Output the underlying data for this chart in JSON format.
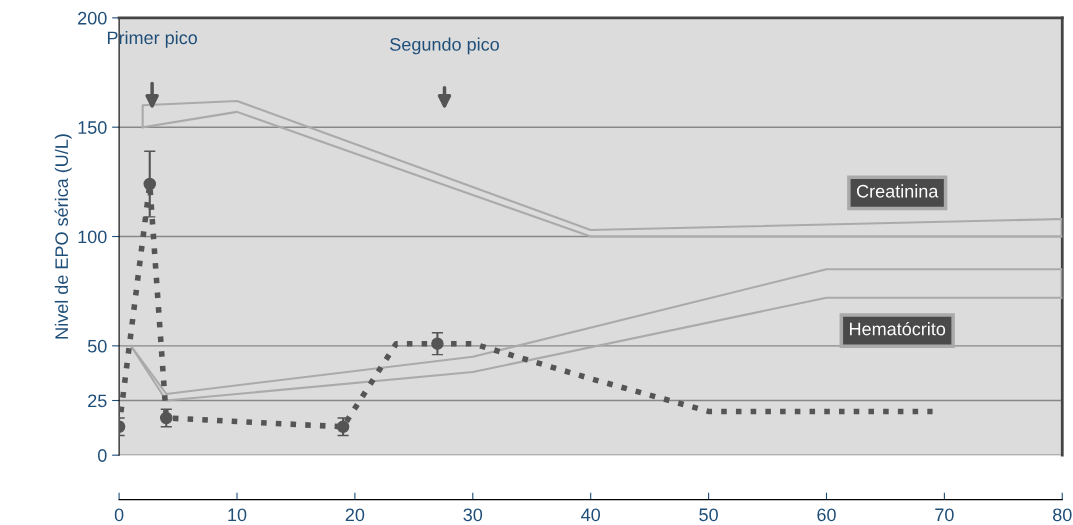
{
  "chart_data": {
    "type": "line",
    "ylabel": "Nivel de EPO sérica (U/L)",
    "xlim": [
      0,
      80
    ],
    "xticks": [
      0,
      10,
      20,
      30,
      40,
      50,
      60,
      70,
      80
    ],
    "ylim": [
      0,
      200
    ],
    "yticks": [
      0,
      25,
      50,
      100,
      150,
      200
    ],
    "grid": "y",
    "legend": false,
    "series": [
      {
        "line_style": "dotted",
        "marker": "none",
        "color": "#555555",
        "x": [
          0,
          2.6,
          4,
          19,
          23.5,
          30,
          40,
          50,
          69
        ],
        "values": [
          13,
          124,
          17,
          13,
          51,
          51,
          35,
          20,
          20
        ]
      },
      {
        "type": "scatter",
        "marker": "circle",
        "color": "#555555",
        "x": [
          0,
          2.6,
          4,
          19,
          27
        ],
        "values": [
          13,
          124,
          17,
          13,
          51
        ],
        "errors": [
          4,
          15,
          4,
          4,
          5
        ]
      },
      {
        "name": "Creatinina",
        "line_style": "solid",
        "color": "#aaaaaa",
        "x": [
          2,
          2,
          10,
          40,
          80,
          80
        ],
        "values": [
          150,
          160,
          162,
          103,
          108,
          100
        ]
      },
      {
        "line_style": "solid",
        "color": "#aaaaaa",
        "x": [
          2,
          10,
          40,
          80
        ],
        "values": [
          150,
          157,
          100,
          100
        ]
      },
      {
        "name": "Hematócrito",
        "line_style": "solid",
        "color": "#aaaaaa",
        "x": [
          1,
          4,
          30,
          60,
          80,
          80
        ],
        "values": [
          50,
          28,
          45,
          85,
          85,
          72
        ]
      },
      {
        "line_style": "solid",
        "color": "#aaaaaa",
        "x": [
          1,
          4,
          30,
          60,
          80
        ],
        "values": [
          50,
          25,
          38,
          72,
          72
        ]
      }
    ],
    "annotations": [
      "Primer pico",
      "Segundo pico"
    ]
  }
}
